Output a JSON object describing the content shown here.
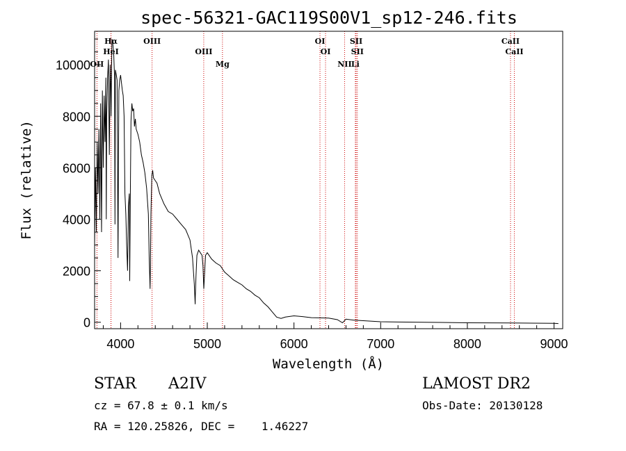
{
  "chart_data": {
    "type": "line",
    "title": "spec-56321-GAC119S00V1_sp12-246.fits",
    "xlabel": "Wavelength (Å)",
    "ylabel": "Flux (relative)",
    "xlim": [
      3700,
      9100
    ],
    "ylim": [
      -250,
      11300
    ],
    "xticks": [
      4000,
      5000,
      6000,
      7000,
      8000,
      9000
    ],
    "xtick_labels": [
      "4000",
      "5000",
      "6000",
      "7000",
      "8000",
      "9000"
    ],
    "yticks": [
      0,
      2000,
      4000,
      6000,
      8000,
      10000
    ],
    "ytick_labels": [
      "0",
      "2000",
      "4000",
      "6000",
      "8000",
      "10000"
    ],
    "grid": false,
    "series": [
      {
        "x": [
          3700,
          3710,
          3720,
          3730,
          3740,
          3750,
          3760,
          3770,
          3780,
          3790,
          3800,
          3810,
          3820,
          3830,
          3835,
          3840,
          3850,
          3860,
          3870,
          3880,
          3885,
          3890,
          3900,
          3910,
          3920,
          3930,
          3935,
          3940,
          3950,
          3960,
          3970,
          3975,
          3980,
          3990,
          4000,
          4010,
          4020,
          4030,
          4040,
          4050,
          4060,
          4070,
          4080,
          4090,
          4100,
          4105,
          4110,
          4120,
          4130,
          4140,
          4150,
          4160,
          4170,
          4180,
          4200,
          4220,
          4240,
          4260,
          4280,
          4300,
          4320,
          4330,
          4340,
          4345,
          4350,
          4360,
          4370,
          4380,
          4400,
          4420,
          4450,
          4500,
          4550,
          4600,
          4650,
          4700,
          4750,
          4800,
          4830,
          4850,
          4860,
          4862,
          4870,
          4880,
          4900,
          4920,
          4940,
          4950,
          4960,
          4980,
          5000,
          5050,
          5100,
          5150,
          5200,
          5250,
          5300,
          5350,
          5400,
          5450,
          5500,
          5550,
          5600,
          5650,
          5700,
          5750,
          5800,
          5850,
          5900,
          6000,
          6100,
          6200,
          6300,
          6400,
          6500,
          6560,
          6600,
          6700,
          6800,
          6900,
          7000,
          7200,
          7500,
          8000,
          8500,
          9000,
          9050
        ],
        "y": [
          3000,
          6000,
          3500,
          7000,
          5000,
          7500,
          4000,
          8500,
          3500,
          9000,
          6000,
          8800,
          7000,
          9500,
          4000,
          8000,
          9500,
          10200,
          6500,
          10000,
          9300,
          8000,
          11000,
          10800,
          10500,
          9500,
          3800,
          9800,
          9600,
          9400,
          2500,
          6000,
          9000,
          9400,
          9600,
          9300,
          9000,
          8800,
          8000,
          5000,
          4200,
          3000,
          2000,
          4500,
          5000,
          1600,
          4000,
          7800,
          8500,
          8200,
          8300,
          7600,
          7900,
          7500,
          7300,
          7000,
          6500,
          6200,
          5800,
          5200,
          4200,
          2500,
          1300,
          2500,
          4200,
          5700,
          5900,
          5600,
          5500,
          5400,
          5000,
          4600,
          4300,
          4200,
          4000,
          3800,
          3600,
          3200,
          2500,
          1500,
          700,
          1000,
          1800,
          2600,
          2800,
          2700,
          2600,
          2200,
          1300,
          2600,
          2700,
          2450,
          2300,
          2200,
          1950,
          1800,
          1650,
          1550,
          1450,
          1300,
          1200,
          1050,
          950,
          750,
          600,
          400,
          200,
          150,
          200,
          250,
          220,
          180,
          170,
          160,
          100,
          -20,
          120,
          80,
          60,
          40,
          20,
          10,
          0,
          -20,
          -30,
          -40,
          -50
        ]
      }
    ],
    "line_markers": [
      {
        "name": "Hα",
        "wavelength": 3889
      },
      {
        "name": "HeI",
        "wavelength": 3889
      },
      {
        "name": "OII",
        "wavelength": 3727
      },
      {
        "name": "OIII",
        "wavelength": 4363
      },
      {
        "name": "OIII",
        "wavelength": 4959
      },
      {
        "name": "Mg",
        "wavelength": 5175
      },
      {
        "name": "OI",
        "wavelength": 6300
      },
      {
        "name": "OI",
        "wavelength": 6364
      },
      {
        "name": "NII",
        "wavelength": 6584
      },
      {
        "name": "SII",
        "wavelength": 6717
      },
      {
        "name": "SII",
        "wavelength": 6731
      },
      {
        "name": "Li",
        "wavelength": 6708
      },
      {
        "name": "CaII",
        "wavelength": 8498
      },
      {
        "name": "CaII",
        "wavelength": 8542
      }
    ],
    "colors": {
      "spectrum": "#000000",
      "marker_lines": "#cc0000"
    }
  },
  "info": {
    "class_label": "STAR",
    "subclass": "A2IV",
    "survey": "LAMOST DR2",
    "cz": "cz = 67.8 ± 0.1 km/s",
    "obs_date": "Obs-Date: 20130128",
    "radec": "RA = 120.25826, DEC =    1.46227"
  }
}
